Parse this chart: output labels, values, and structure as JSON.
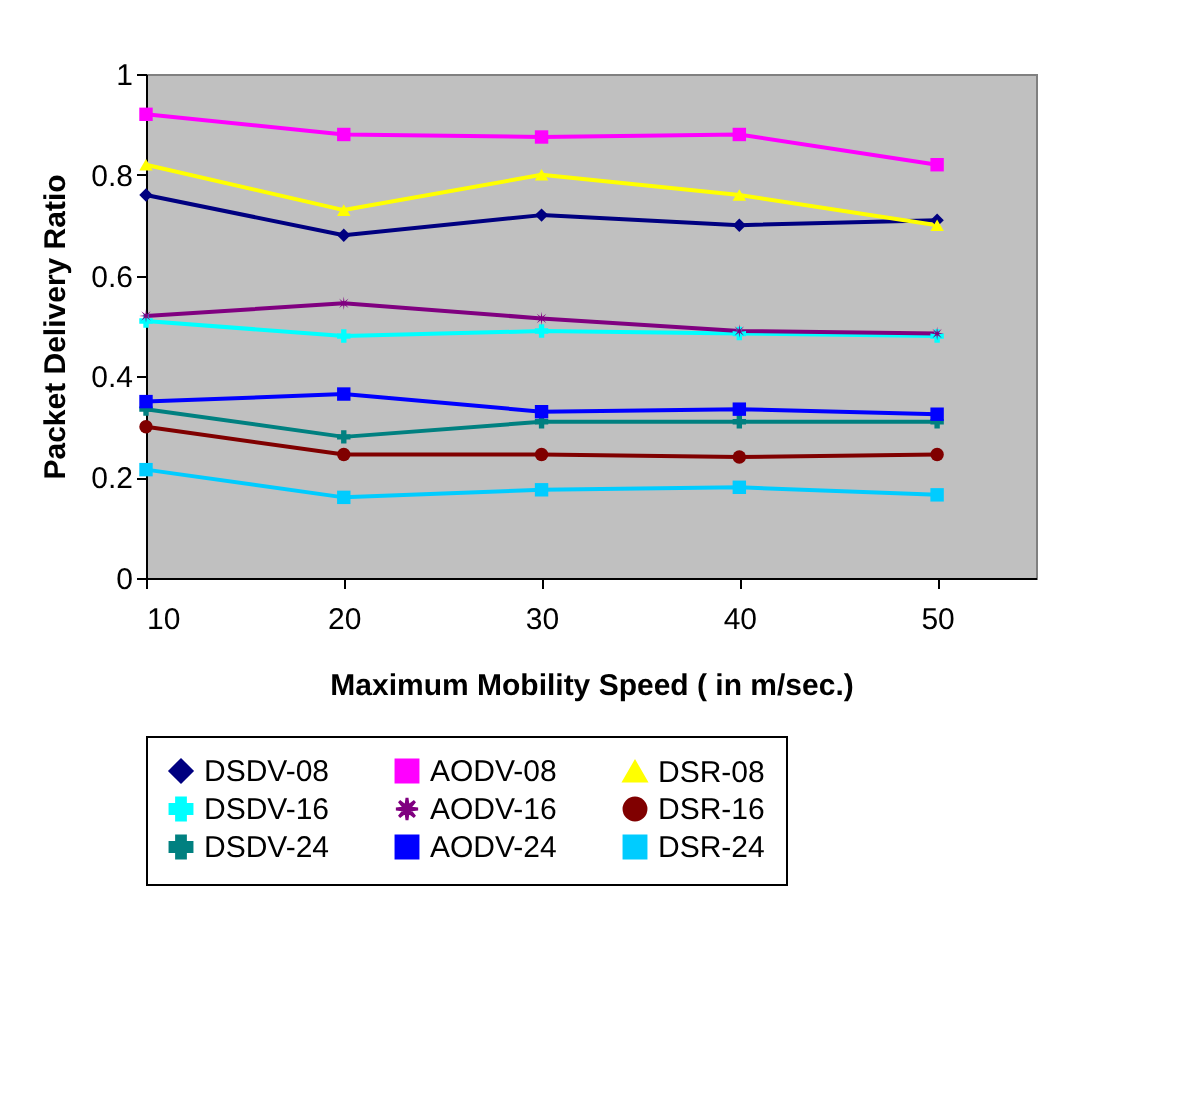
{
  "chart_data": {
    "type": "line",
    "xlabel": "Maximum Mobility Speed ( in m/sec.)",
    "ylabel": "Packet Delivery Ratio",
    "x": [
      10,
      20,
      30,
      40,
      50
    ],
    "xlim": [
      10,
      55
    ],
    "xticks": [
      10,
      20,
      30,
      40,
      50
    ],
    "ylim": [
      0,
      1
    ],
    "yticks": [
      0,
      0.2,
      0.4,
      0.6,
      0.8,
      1
    ],
    "grid": false,
    "legend": "bottom",
    "series": [
      {
        "name": "DSDV-08",
        "color": "#000080",
        "marker": "diamond",
        "values": [
          0.76,
          0.68,
          0.72,
          0.7,
          0.71
        ]
      },
      {
        "name": "AODV-08",
        "color": "#ff00ff",
        "marker": "square",
        "values": [
          0.92,
          0.88,
          0.875,
          0.88,
          0.82
        ]
      },
      {
        "name": "DSR-08",
        "color": "#ffff00",
        "marker": "triangle",
        "values": [
          0.82,
          0.73,
          0.8,
          0.76,
          0.7
        ]
      },
      {
        "name": "DSDV-16",
        "color": "#00ffff",
        "marker": "cross",
        "values": [
          0.51,
          0.48,
          0.49,
          0.485,
          0.48
        ]
      },
      {
        "name": "AODV-16",
        "color": "#800080",
        "marker": "star",
        "values": [
          0.52,
          0.545,
          0.515,
          0.49,
          0.485
        ]
      },
      {
        "name": "DSR-16",
        "color": "#800000",
        "marker": "circle",
        "values": [
          0.3,
          0.245,
          0.245,
          0.24,
          0.245
        ]
      },
      {
        "name": "DSDV-24",
        "color": "#008080",
        "marker": "cross",
        "values": [
          0.335,
          0.28,
          0.31,
          0.31,
          0.31
        ]
      },
      {
        "name": "AODV-24",
        "color": "#0000ff",
        "marker": "square",
        "values": [
          0.35,
          0.365,
          0.33,
          0.335,
          0.325
        ]
      },
      {
        "name": "DSR-24",
        "color": "#00ccff",
        "marker": "square",
        "values": [
          0.215,
          0.16,
          0.175,
          0.18,
          0.165
        ]
      }
    ]
  }
}
